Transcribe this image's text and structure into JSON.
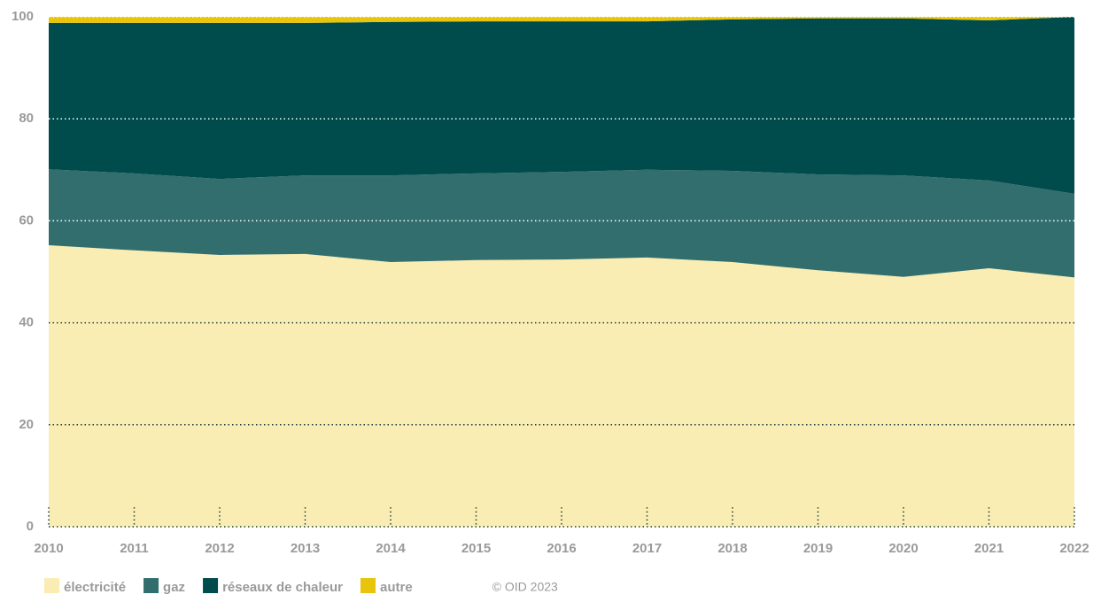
{
  "chart_data": {
    "type": "stacked_area",
    "x": [
      2010,
      2011,
      2012,
      2013,
      2014,
      2015,
      2016,
      2017,
      2018,
      2019,
      2020,
      2021,
      2022
    ],
    "series": [
      {
        "name": "électricité",
        "color": "#f9edb4",
        "values": [
          55.2,
          54.2,
          53.3,
          53.5,
          51.9,
          52.3,
          52.4,
          52.8,
          51.9,
          50.3,
          49.0,
          50.7,
          48.9
        ]
      },
      {
        "name": "gaz",
        "color": "#336e6e",
        "values": [
          14.9,
          15.1,
          14.9,
          15.4,
          17.0,
          17.0,
          17.2,
          17.2,
          17.9,
          18.8,
          19.9,
          17.2,
          16.4
        ]
      },
      {
        "name": "réseaux de chaleur",
        "color": "#004b4b",
        "values": [
          28.7,
          29.5,
          30.6,
          29.9,
          30.1,
          29.8,
          29.5,
          29.1,
          29.7,
          30.6,
          30.8,
          31.4,
          34.7
        ]
      },
      {
        "name": "autre",
        "color": "#e8c40a",
        "values": [
          1.2,
          1.2,
          1.2,
          1.2,
          1.0,
          0.9,
          0.9,
          0.9,
          0.5,
          0.3,
          0.3,
          0.7,
          0.0
        ]
      }
    ],
    "xlim": [
      2010,
      2022
    ],
    "xticks": [
      2010,
      2011,
      2012,
      2013,
      2014,
      2015,
      2016,
      2017,
      2018,
      2019,
      2020,
      2021,
      2022
    ],
    "ylim": [
      0,
      100
    ],
    "yticks": [
      0,
      20,
      40,
      60,
      80,
      100
    ],
    "grid": true,
    "credit": "© OID 2023",
    "credit_color": "#e8c40a"
  }
}
